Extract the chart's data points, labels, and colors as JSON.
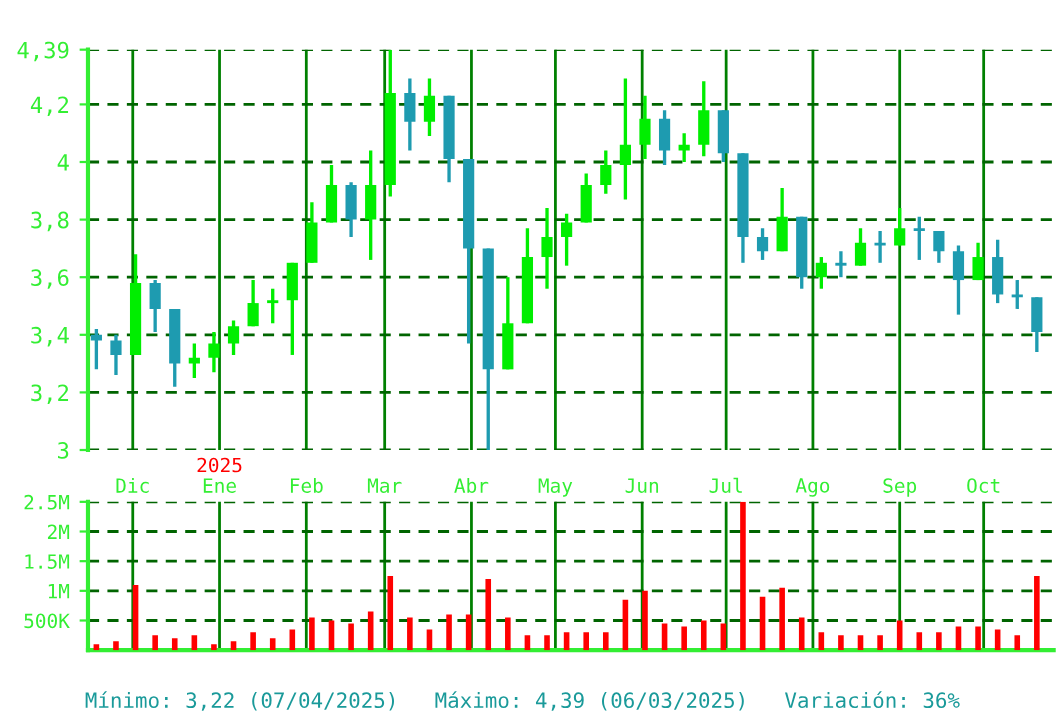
{
  "chart_data": [
    {
      "type": "candlestick",
      "x": [
        "2024-11-18",
        "2024-11-25",
        "2024-12-02",
        "2024-12-09",
        "2024-12-16",
        "2024-12-23",
        "2024-12-30",
        "2025-01-06",
        "2025-01-13",
        "2025-01-20",
        "2025-01-27",
        "2025-02-03",
        "2025-02-10",
        "2025-02-17",
        "2025-02-24",
        "2025-03-03",
        "2025-03-10",
        "2025-03-17",
        "2025-03-24",
        "2025-03-31",
        "2025-04-07",
        "2025-04-14",
        "2025-04-21",
        "2025-04-28",
        "2025-05-05",
        "2025-05-12",
        "2025-05-19",
        "2025-05-26",
        "2025-06-02",
        "2025-06-09",
        "2025-06-16",
        "2025-06-23",
        "2025-06-30",
        "2025-07-07",
        "2025-07-14",
        "2025-07-21",
        "2025-07-28",
        "2025-08-04",
        "2025-08-11",
        "2025-08-18",
        "2025-08-25",
        "2025-09-01",
        "2025-09-08",
        "2025-09-15",
        "2025-09-22",
        "2025-09-29",
        "2025-10-06",
        "2025-10-13",
        "2025-10-20"
      ],
      "ohlc": [
        [
          3.4,
          3.42,
          3.28,
          3.38
        ],
        [
          3.38,
          3.4,
          3.26,
          3.33
        ],
        [
          3.33,
          3.68,
          3.33,
          3.58
        ],
        [
          3.58,
          3.59,
          3.41,
          3.49
        ],
        [
          3.49,
          3.49,
          3.22,
          3.3
        ],
        [
          3.3,
          3.37,
          3.25,
          3.32
        ],
        [
          3.32,
          3.41,
          3.27,
          3.37
        ],
        [
          3.37,
          3.45,
          3.33,
          3.43
        ],
        [
          3.43,
          3.59,
          3.43,
          3.51
        ],
        [
          3.51,
          3.56,
          3.44,
          3.52
        ],
        [
          3.52,
          3.65,
          3.33,
          3.65
        ],
        [
          3.65,
          3.86,
          3.65,
          3.79
        ],
        [
          3.79,
          3.99,
          3.79,
          3.92
        ],
        [
          3.92,
          3.93,
          3.74,
          3.8
        ],
        [
          3.8,
          4.04,
          3.66,
          3.92
        ],
        [
          3.92,
          4.39,
          3.88,
          4.24
        ],
        [
          4.24,
          4.29,
          4.04,
          4.14
        ],
        [
          4.14,
          4.29,
          4.09,
          4.23
        ],
        [
          4.23,
          4.23,
          3.93,
          4.01
        ],
        [
          4.01,
          4.01,
          3.37,
          3.7
        ],
        [
          3.7,
          3.7,
          3.0,
          3.28
        ],
        [
          3.28,
          3.6,
          3.28,
          3.44
        ],
        [
          3.44,
          3.77,
          3.44,
          3.67
        ],
        [
          3.67,
          3.84,
          3.56,
          3.74
        ],
        [
          3.74,
          3.82,
          3.64,
          3.79
        ],
        [
          3.79,
          3.96,
          3.79,
          3.92
        ],
        [
          3.92,
          4.04,
          3.89,
          3.99
        ],
        [
          3.99,
          4.29,
          3.87,
          4.06
        ],
        [
          4.06,
          4.23,
          4.01,
          4.15
        ],
        [
          4.15,
          4.18,
          3.99,
          4.04
        ],
        [
          4.04,
          4.1,
          4.0,
          4.06
        ],
        [
          4.06,
          4.28,
          4.02,
          4.18
        ],
        [
          4.18,
          4.18,
          4.0,
          4.03
        ],
        [
          4.03,
          4.03,
          3.65,
          3.74
        ],
        [
          3.74,
          3.77,
          3.66,
          3.69
        ],
        [
          3.69,
          3.91,
          3.69,
          3.81
        ],
        [
          3.81,
          3.81,
          3.56,
          3.6
        ],
        [
          3.6,
          3.67,
          3.56,
          3.65
        ],
        [
          3.65,
          3.69,
          3.6,
          3.64
        ],
        [
          3.64,
          3.77,
          3.64,
          3.72
        ],
        [
          3.72,
          3.76,
          3.65,
          3.71
        ],
        [
          3.71,
          3.84,
          3.71,
          3.77
        ],
        [
          3.77,
          3.81,
          3.66,
          3.76
        ],
        [
          3.76,
          3.76,
          3.65,
          3.69
        ],
        [
          3.69,
          3.71,
          3.47,
          3.59
        ],
        [
          3.59,
          3.72,
          3.59,
          3.67
        ],
        [
          3.67,
          3.73,
          3.51,
          3.54
        ],
        [
          3.54,
          3.59,
          3.49,
          3.53
        ],
        [
          3.53,
          3.53,
          3.34,
          3.41
        ]
      ],
      "colors": [
        "#1e9bb0",
        "#1e9bb0",
        "#00ee00",
        "#1e9bb0",
        "#1e9bb0",
        "#00ee00",
        "#00ee00",
        "#00ee00",
        "#00ee00",
        "#00ee00",
        "#00ee00",
        "#00ee00",
        "#00ee00",
        "#1e9bb0",
        "#00ee00",
        "#00ee00",
        "#1e9bb0",
        "#00ee00",
        "#1e9bb0",
        "#1e9bb0",
        "#1e9bb0",
        "#00ee00",
        "#00ee00",
        "#00ee00",
        "#00ee00",
        "#00ee00",
        "#00ee00",
        "#00ee00",
        "#00ee00",
        "#1e9bb0",
        "#00ee00",
        "#00ee00",
        "#1e9bb0",
        "#1e9bb0",
        "#1e9bb0",
        "#00ee00",
        "#1e9bb0",
        "#00ee00",
        "#1e9bb0",
        "#00ee00",
        "#1e9bb0",
        "#00ee00",
        "#1e9bb0",
        "#1e9bb0",
        "#1e9bb0",
        "#00ee00",
        "#1e9bb0",
        "#1e9bb0",
        "#1e9bb0"
      ],
      "xlim": [
        "2024-11-15",
        "2025-10-26"
      ],
      "xticks": [
        {
          "value": "2024-12-01",
          "label": "Dic"
        },
        {
          "value": "2025-01-01",
          "label": "Ene"
        },
        {
          "value": "2025-02-01",
          "label": "Feb"
        },
        {
          "value": "2025-03-01",
          "label": "Mar"
        },
        {
          "value": "2025-04-01",
          "label": "Abr"
        },
        {
          "value": "2025-05-01",
          "label": "May"
        },
        {
          "value": "2025-06-01",
          "label": "Jun"
        },
        {
          "value": "2025-07-01",
          "label": "Jul"
        },
        {
          "value": "2025-08-01",
          "label": "Ago"
        },
        {
          "value": "2025-09-01",
          "label": "Sep"
        },
        {
          "value": "2025-10-01",
          "label": "Oct"
        }
      ],
      "ylim": [
        3,
        4.39
      ],
      "yticks": [
        3,
        {
          "value": 3.2,
          "label": "3,2"
        },
        {
          "value": 3.4,
          "label": "3,4"
        },
        {
          "value": 3.6,
          "label": "3,6"
        },
        {
          "value": 3.8,
          "label": "3,8"
        },
        4,
        {
          "value": 4.2,
          "label": "4,2"
        },
        {
          "value": 4.39,
          "label": "4,39"
        }
      ],
      "grid": true,
      "annotations": [
        "2025"
      ]
    },
    {
      "type": "bar",
      "x": [
        "2024-11-18",
        "2024-11-25",
        "2024-12-02",
        "2024-12-09",
        "2024-12-16",
        "2024-12-23",
        "2024-12-30",
        "2025-01-06",
        "2025-01-13",
        "2025-01-20",
        "2025-01-27",
        "2025-02-03",
        "2025-02-10",
        "2025-02-17",
        "2025-02-24",
        "2025-03-03",
        "2025-03-10",
        "2025-03-17",
        "2025-03-24",
        "2025-03-31",
        "2025-04-07",
        "2025-04-14",
        "2025-04-21",
        "2025-04-28",
        "2025-05-05",
        "2025-05-12",
        "2025-05-19",
        "2025-05-26",
        "2025-06-02",
        "2025-06-09",
        "2025-06-16",
        "2025-06-23",
        "2025-06-30",
        "2025-07-07",
        "2025-07-14",
        "2025-07-21",
        "2025-07-28",
        "2025-08-04",
        "2025-08-11",
        "2025-08-18",
        "2025-08-25",
        "2025-09-01",
        "2025-09-08",
        "2025-09-15",
        "2025-09-22",
        "2025-09-29",
        "2025-10-06",
        "2025-10-13",
        "2025-10-20"
      ],
      "values": [
        100000,
        150000,
        1100000,
        250000,
        200000,
        250000,
        100000,
        150000,
        300000,
        200000,
        350000,
        550000,
        500000,
        450000,
        650000,
        1250000,
        550000,
        350000,
        600000,
        600000,
        1200000,
        550000,
        250000,
        250000,
        300000,
        300000,
        300000,
        850000,
        1000000,
        450000,
        400000,
        500000,
        450000,
        2500000,
        900000,
        1050000,
        550000,
        300000,
        250000,
        250000,
        250000,
        500000,
        300000,
        300000,
        400000,
        400000,
        350000,
        250000,
        1250000
      ],
      "color": "#ff0000",
      "xlim": [
        "2024-11-15",
        "2025-10-26"
      ],
      "xticks": [
        {
          "value": "2024-12-01",
          "label": null
        },
        {
          "value": "2025-01-01",
          "label": null
        },
        {
          "value": "2025-02-01",
          "label": null
        },
        {
          "value": "2025-03-01",
          "label": null
        },
        {
          "value": "2025-04-01",
          "label": null
        },
        {
          "value": "2025-05-01",
          "label": null
        },
        {
          "value": "2025-06-01",
          "label": null
        },
        {
          "value": "2025-07-01",
          "label": null
        },
        {
          "value": "2025-08-01",
          "label": null
        },
        {
          "value": "2025-09-01",
          "label": null
        },
        {
          "value": "2025-10-01",
          "label": null
        }
      ],
      "ylim": [
        0,
        2500000
      ],
      "yticks": [
        {
          "value": 500000,
          "label": "500K"
        },
        {
          "value": 1000000,
          "label": "1M"
        },
        {
          "value": 1500000,
          "label": "1.5M"
        },
        {
          "value": 2000000,
          "label": "2M"
        },
        {
          "value": 2500000,
          "label": "2.5M"
        }
      ],
      "grid": true,
      "tick_labels": "y",
      "annotations": [
        "Mínimo: 3,22 (07/04/2025)",
        "Máximo: 4,39 (06/03/2025)",
        "Variación: 36%"
      ]
    }
  ]
}
